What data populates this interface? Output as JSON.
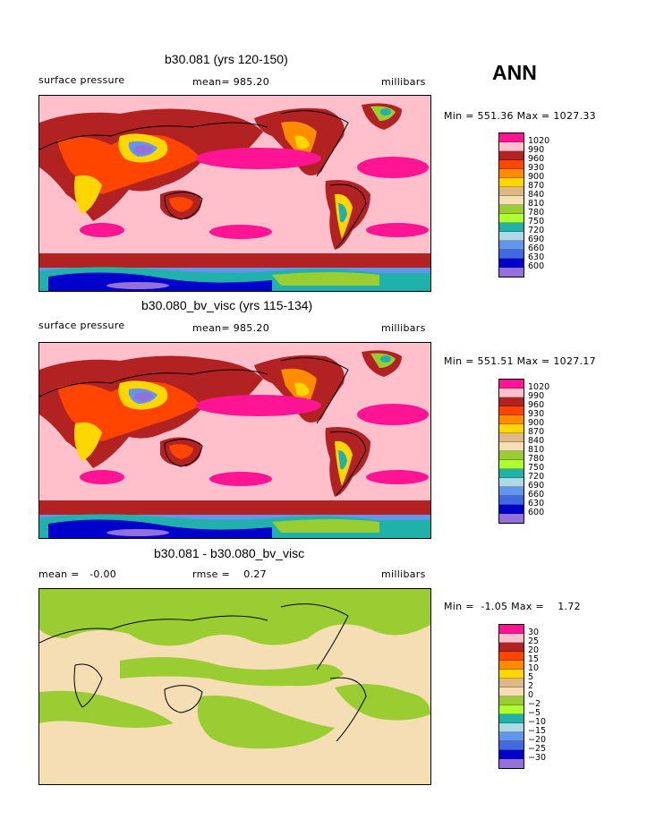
{
  "season": "ANN",
  "panels": [
    {
      "title": "b30.081 (yrs 120-150)",
      "left_label": "surface pressure",
      "center_label": "mean= 985.20",
      "right_label": "millibars",
      "minmax": "Min = 551.36 Max = 1027.33",
      "legend_labels": [
        "1020",
        "990",
        "960",
        "930",
        "900",
        "870",
        "840",
        "810",
        "780",
        "750",
        "720",
        "690",
        "660",
        "630",
        "600"
      ],
      "legend_colors": [
        "#ff1493",
        "#ffc0cb",
        "#b22222",
        "#ff4500",
        "#ff8c00",
        "#ffd700",
        "#deb887",
        "#f5deb3",
        "#9acd32",
        "#adff2f",
        "#20b2aa",
        "#add8e6",
        "#6495ed",
        "#4169e1",
        "#0000cd",
        "#9370db"
      ]
    },
    {
      "title": "b30.080_bv_visc (yrs 115-134)",
      "left_label": "surface pressure",
      "center_label": "mean= 985.20",
      "right_label": "millibars",
      "minmax": "Min = 551.51 Max = 1027.17",
      "legend_labels": [
        "1020",
        "990",
        "960",
        "930",
        "900",
        "870",
        "840",
        "810",
        "780",
        "750",
        "720",
        "690",
        "660",
        "630",
        "600"
      ],
      "legend_colors": [
        "#ff1493",
        "#ffc0cb",
        "#b22222",
        "#ff4500",
        "#ff8c00",
        "#ffd700",
        "#deb887",
        "#f5deb3",
        "#9acd32",
        "#adff2f",
        "#20b2aa",
        "#add8e6",
        "#6495ed",
        "#4169e1",
        "#0000cd",
        "#9370db"
      ]
    },
    {
      "title": "b30.081 - b30.080_bv_visc",
      "left_label": "mean =   -0.00",
      "center_label": "rmse =    0.27",
      "right_label": "millibars",
      "minmax": "Min =  -1.05 Max =    1.72",
      "legend_labels": [
        "30",
        "25",
        "20",
        "15",
        "10",
        "5",
        "2",
        "0",
        "−2",
        "−5",
        "−10",
        "−15",
        "−20",
        "−25",
        "−30"
      ],
      "legend_colors": [
        "#ff1493",
        "#ffc0cb",
        "#b22222",
        "#ff4500",
        "#ff8c00",
        "#ffd700",
        "#deb887",
        "#f5deb3",
        "#9acd32",
        "#adff2f",
        "#20b2aa",
        "#add8e6",
        "#6495ed",
        "#4169e1",
        "#0000cd",
        "#9370db"
      ]
    }
  ]
}
